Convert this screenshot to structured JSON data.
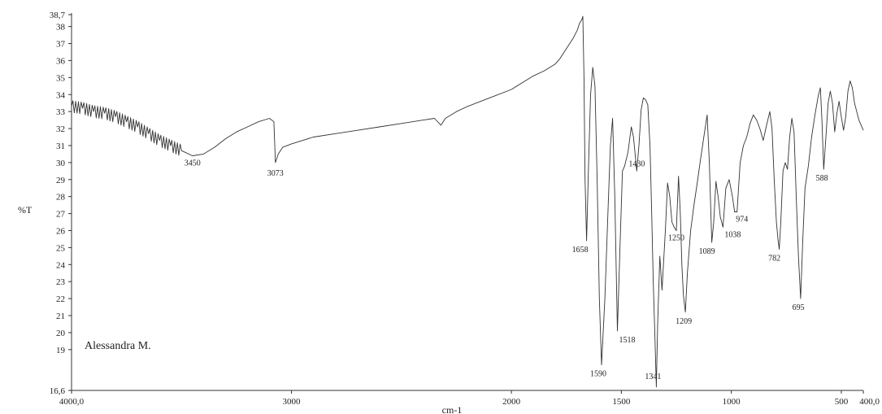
{
  "chart_data": {
    "type": "line",
    "title": "",
    "xlabel": "cm-1",
    "ylabel": "%T",
    "xlim": [
      4000.0,
      400.0
    ],
    "ylim": [
      16.6,
      38.7
    ],
    "x_reversed": true,
    "grid": false,
    "x_ticks": [
      {
        "value": 4000,
        "label": "4000,0"
      },
      {
        "value": 3000,
        "label": "3000"
      },
      {
        "value": 2000,
        "label": "2000"
      },
      {
        "value": 1500,
        "label": "1500"
      },
      {
        "value": 1000,
        "label": "1000"
      },
      {
        "value": 500,
        "label": "500"
      },
      {
        "value": 400,
        "label": "400,0"
      }
    ],
    "y_ticks": [
      {
        "value": 38.7,
        "label": "38,7"
      },
      {
        "value": 38,
        "label": "38"
      },
      {
        "value": 37,
        "label": "37"
      },
      {
        "value": 36,
        "label": "36"
      },
      {
        "value": 35,
        "label": "35"
      },
      {
        "value": 34,
        "label": "34"
      },
      {
        "value": 33,
        "label": "33"
      },
      {
        "value": 32,
        "label": "32"
      },
      {
        "value": 31,
        "label": "31"
      },
      {
        "value": 30,
        "label": "30"
      },
      {
        "value": 29,
        "label": "29"
      },
      {
        "value": 28,
        "label": "28"
      },
      {
        "value": 27,
        "label": "27"
      },
      {
        "value": 26,
        "label": "26"
      },
      {
        "value": 25,
        "label": "25"
      },
      {
        "value": 24,
        "label": "24"
      },
      {
        "value": 23,
        "label": "23"
      },
      {
        "value": 22,
        "label": "22"
      },
      {
        "value": 21,
        "label": "21"
      },
      {
        "value": 20,
        "label": "20"
      },
      {
        "value": 19,
        "label": "19"
      },
      {
        "value": 16.6,
        "label": "16,6"
      }
    ],
    "annotations": [
      {
        "label": "3450",
        "x": 3450,
        "y": 30.4
      },
      {
        "label": "3073",
        "x": 3073,
        "y": 30.0
      },
      {
        "label": "1658",
        "x": 1658,
        "y": 25.4
      },
      {
        "label": "1590",
        "x": 1590,
        "y": 18.1
      },
      {
        "label": "1518",
        "x": 1518,
        "y": 20.1
      },
      {
        "label": "1430",
        "x": 1430,
        "y": 29.5
      },
      {
        "label": "1341",
        "x": 1341,
        "y": 16.8
      },
      {
        "label": "1250",
        "x": 1250,
        "y": 26.0
      },
      {
        "label": "1209",
        "x": 1209,
        "y": 21.2
      },
      {
        "label": "1089",
        "x": 1089,
        "y": 25.3
      },
      {
        "label": "1038",
        "x": 1038,
        "y": 26.2
      },
      {
        "label": "974",
        "x": 974,
        "y": 27.1
      },
      {
        "label": "782",
        "x": 782,
        "y": 24.9
      },
      {
        "label": "695",
        "x": 695,
        "y": 22.0
      },
      {
        "label": "588",
        "x": 588,
        "y": 29.6
      }
    ],
    "signature": "Alessandra M.",
    "series": [
      {
        "x": [
          4000,
          3950,
          3900,
          3850,
          3800,
          3750,
          3700,
          3650,
          3600,
          3550,
          3500,
          3450,
          3400,
          3350,
          3300,
          3250,
          3200,
          3150,
          3100,
          3080,
          3073,
          3060,
          3040,
          3000,
          2950,
          2900,
          2800,
          2700,
          2600,
          2500,
          2400,
          2350,
          2320,
          2300,
          2250,
          2200,
          2100,
          2000,
          1950,
          1900,
          1850,
          1800,
          1780,
          1760,
          1740,
          1720,
          1700,
          1690,
          1680,
          1675,
          1670,
          1665,
          1658,
          1650,
          1640,
          1630,
          1620,
          1610,
          1600,
          1590,
          1575,
          1560,
          1550,
          1540,
          1530,
          1518,
          1505,
          1495,
          1485,
          1470,
          1455,
          1445,
          1430,
          1420,
          1410,
          1400,
          1390,
          1380,
          1370,
          1362,
          1355,
          1348,
          1341,
          1335,
          1325,
          1315,
          1300,
          1290,
          1280,
          1270,
          1260,
          1250,
          1240,
          1232,
          1225,
          1218,
          1209,
          1200,
          1185,
          1170,
          1155,
          1140,
          1125,
          1110,
          1100,
          1089,
          1080,
          1070,
          1060,
          1050,
          1038,
          1025,
          1010,
          995,
          985,
          974,
          960,
          945,
          930,
          915,
          900,
          885,
          870,
          855,
          840,
          825,
          815,
          805,
          795,
          788,
          782,
          775,
          765,
          755,
          745,
          735,
          725,
          715,
          705,
          695,
          685,
          675,
          665,
          650,
          635,
          620,
          605,
          595,
          588,
          580,
          570,
          560,
          550,
          540,
          530,
          520,
          510,
          500,
          490,
          480,
          470,
          460,
          450,
          440,
          430,
          420,
          410,
          400
        ],
        "y": [
          33.3,
          33.2,
          33.0,
          32.9,
          32.7,
          32.4,
          32.1,
          31.7,
          31.3,
          31.0,
          30.7,
          30.4,
          30.5,
          30.9,
          31.4,
          31.8,
          32.1,
          32.4,
          32.6,
          32.4,
          30.0,
          30.5,
          30.9,
          31.1,
          31.3,
          31.5,
          31.7,
          31.9,
          32.1,
          32.3,
          32.5,
          32.6,
          32.2,
          32.6,
          33.0,
          33.3,
          33.8,
          34.3,
          34.7,
          35.1,
          35.4,
          35.8,
          36.1,
          36.5,
          36.9,
          37.3,
          37.8,
          38.2,
          38.4,
          38.6,
          35.0,
          29.0,
          25.4,
          29.5,
          34.0,
          35.6,
          34.5,
          29.0,
          22.0,
          18.1,
          22.0,
          27.5,
          31.0,
          32.6,
          28.0,
          20.1,
          25.5,
          29.5,
          29.8,
          30.6,
          32.1,
          31.5,
          29.5,
          31.0,
          33.1,
          33.8,
          33.7,
          33.4,
          31.0,
          27.0,
          23.0,
          20.0,
          16.8,
          20.5,
          24.5,
          22.5,
          26.0,
          28.8,
          28.0,
          26.5,
          26.2,
          26.0,
          29.2,
          27.0,
          24.0,
          22.2,
          21.2,
          23.5,
          26.0,
          27.5,
          28.8,
          30.2,
          31.5,
          32.8,
          30.0,
          25.3,
          26.5,
          28.9,
          28.0,
          26.8,
          26.2,
          28.5,
          29.0,
          28.0,
          27.1,
          27.1,
          30.0,
          31.0,
          31.5,
          32.3,
          32.8,
          32.5,
          32.0,
          31.3,
          32.2,
          33.0,
          32.0,
          29.0,
          26.5,
          25.5,
          24.9,
          26.5,
          29.5,
          30.0,
          29.6,
          31.5,
          32.6,
          31.8,
          28.0,
          24.5,
          22.0,
          25.5,
          28.5,
          29.8,
          31.5,
          32.8,
          33.9,
          34.4,
          32.5,
          29.6,
          31.5,
          33.5,
          34.2,
          33.5,
          31.8,
          32.9,
          33.6,
          32.7,
          31.9,
          32.7,
          34.2,
          34.8,
          34.4,
          33.5,
          33.0,
          32.5,
          32.2,
          31.9
        ]
      }
    ]
  }
}
